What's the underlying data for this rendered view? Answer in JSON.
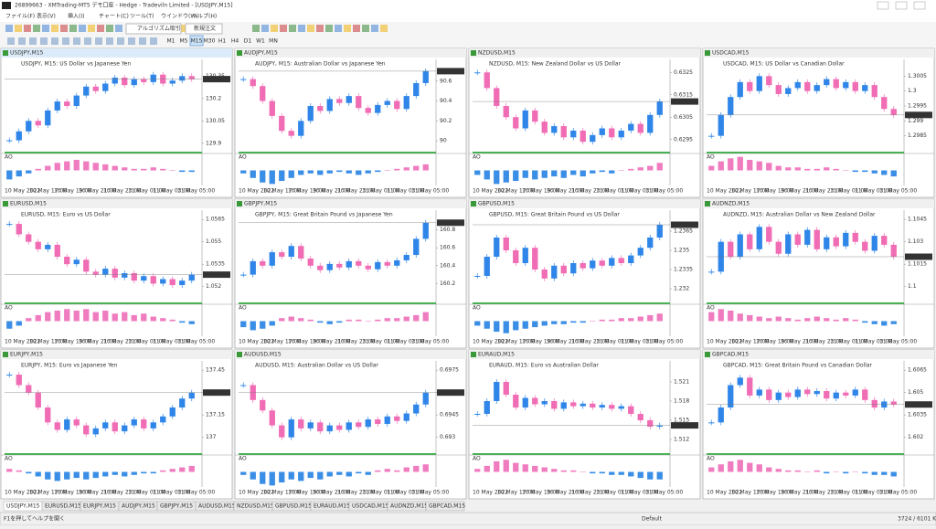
{
  "window": {
    "title": "26899663 - XMTrading-MT5 デモ口座 - Hedge - Tradeviln Limited - [USDJPY,M15]",
    "menu": [
      "ファイル(F)",
      "表示(V)",
      "挿入(I)",
      "チャート(C)",
      "ツール(T)",
      "ウインドウ(W)",
      "ヘルプ(H)"
    ],
    "toolbar": [
      "アルゴリズム取引",
      "新規注文"
    ],
    "timeframes": [
      "M1",
      "M5",
      "M15",
      "M30",
      "H1",
      "H4",
      "D1",
      "W1",
      "MN"
    ],
    "tabs": [
      "USDJPY,M15",
      "EURUSD,M15",
      "EURJPY,M15",
      "AUDJPY,M15",
      "GBPJPY,M15",
      "AUDUSD,M15",
      "NZDUSD,M15",
      "GBPUSD,M15",
      "EURAUD,M15",
      "USDCAD,M15",
      "AUDNZD,M15",
      "GBPCAD,M15"
    ],
    "status": {
      "help": "F1を押してヘルプを開く",
      "profile": "Default",
      "memory": "3724 / 6101 Kb"
    }
  },
  "style": {
    "up_color": "#2f86e8",
    "down_color": "#f06cb4",
    "osc_up": "#f07cc0",
    "osc_down": "#3a8ee6",
    "indicator": "AO"
  },
  "time_labels": [
    "10 May 2022",
    "10 May 17:00",
    "10 May 19:00",
    "10 May 21:00",
    "10 May 23:00",
    "11 May 01:00",
    "11 May 03:00",
    "11 May 05:00"
  ],
  "charts": [
    {
      "title": "USDJPY,M15",
      "desc": "USDJPY, M15: US Dollar vs Japanese Yen",
      "ylim": [
        129.85,
        130.45
      ],
      "yticks": [
        129.9,
        130.05,
        130.2,
        130.35
      ],
      "closes": [
        129.92,
        129.98,
        130.05,
        130.02,
        130.12,
        130.18,
        130.15,
        130.22,
        130.28,
        130.25,
        130.3,
        130.34,
        130.29,
        130.33,
        130.31,
        130.36,
        130.3,
        130.32,
        130.35,
        130.33
      ],
      "osc": [
        -0.6,
        -0.4,
        -0.2,
        0.1,
        0.3,
        0.5,
        0.6,
        0.7,
        0.6,
        0.5,
        0.4,
        0.3,
        0.2,
        0.1,
        0.1,
        0.2,
        0.1,
        0,
        -0.1,
        -0.1
      ]
    },
    {
      "title": "AUDJPY,M15",
      "desc": "AUDJPY, M15: Australian Dollar vs Japanese Yen",
      "ylim": [
        89.9,
        90.8
      ],
      "yticks": [
        90,
        90.2,
        90.4,
        90.6
      ],
      "closes": [
        90.62,
        90.55,
        90.4,
        90.25,
        90.1,
        90.05,
        90.2,
        90.35,
        90.3,
        90.42,
        90.38,
        90.45,
        90.33,
        90.28,
        90.36,
        90.4,
        90.32,
        90.45,
        90.58,
        90.7
      ],
      "osc": [
        -0.2,
        -0.5,
        -0.8,
        -0.9,
        -0.7,
        -0.5,
        -0.3,
        -0.2,
        -0.3,
        -0.2,
        -0.1,
        -0.2,
        -0.3,
        -0.2,
        -0.1,
        0,
        0.1,
        0.2,
        0.3,
        0.4
      ]
    },
    {
      "title": "NZDUSD,M15",
      "desc": "NZDUSD, M15: New Zealand Dollar vs US Dollar",
      "ylim": [
        0.629,
        0.633
      ],
      "yticks": [
        0.6295,
        0.6305,
        0.6315,
        0.6325
      ],
      "closes": [
        0.6325,
        0.6318,
        0.631,
        0.6305,
        0.63,
        0.6308,
        0.6303,
        0.6298,
        0.6301,
        0.6296,
        0.6299,
        0.6294,
        0.6297,
        0.63,
        0.6296,
        0.6299,
        0.6302,
        0.6298,
        0.6306,
        0.6312
      ],
      "osc": [
        -0.3,
        -0.6,
        -0.9,
        -0.8,
        -0.7,
        -0.5,
        -0.6,
        -0.5,
        -0.4,
        -0.5,
        -0.3,
        -0.4,
        -0.2,
        -0.1,
        -0.2,
        0,
        0.1,
        0.2,
        0.3,
        0.5
      ]
    },
    {
      "title": "USDCAD,M15",
      "desc": "USDCAD, M15: US Dollar vs Canadian Dollar",
      "ylim": [
        1.298,
        1.301
      ],
      "yticks": [
        1.2985,
        1.299,
        1.2995,
        1.3,
        1.3005
      ],
      "closes": [
        1.2985,
        1.2992,
        1.2998,
        1.3003,
        1.3,
        1.3005,
        1.3002,
        1.2999,
        1.3001,
        1.3003,
        1.3,
        1.3002,
        1.3004,
        1.3001,
        1.3003,
        1.3,
        1.3002,
        1.2998,
        1.2994,
        1.2992
      ],
      "osc": [
        0.3,
        0.6,
        0.8,
        0.9,
        0.7,
        0.6,
        0.5,
        0.3,
        0.2,
        0.2,
        0.1,
        0.1,
        0.2,
        0.1,
        0,
        -0.1,
        -0.1,
        -0.2,
        -0.3,
        -0.4
      ]
    },
    {
      "title": "EURUSD,M15",
      "desc": "EURUSD, M15: Euro vs US Dollar",
      "ylim": [
        1.051,
        1.057
      ],
      "yticks": [
        1.052,
        1.0535,
        1.055,
        1.0565
      ],
      "closes": [
        1.0562,
        1.0555,
        1.055,
        1.0545,
        1.0548,
        1.054,
        1.0535,
        1.0538,
        1.053,
        1.0528,
        1.0532,
        1.0526,
        1.0529,
        1.0524,
        1.0527,
        1.0522,
        1.0525,
        1.0521,
        1.0524,
        1.0528
      ],
      "osc": [
        -0.5,
        -0.3,
        0.2,
        0.4,
        0.6,
        0.7,
        0.8,
        0.7,
        0.8,
        0.6,
        0.7,
        0.5,
        0.6,
        0.4,
        0.5,
        0.3,
        0.2,
        0.1,
        -0.1,
        -0.2
      ]
    },
    {
      "title": "GBPJPY,M15",
      "desc": "GBPJPY, M15: Great Britain Pound vs Japanese Yen",
      "ylim": [
        160,
        161
      ],
      "yticks": [
        160.2,
        160.4,
        160.6,
        160.8
      ],
      "closes": [
        160.3,
        160.45,
        160.4,
        160.55,
        160.5,
        160.62,
        160.48,
        160.4,
        160.35,
        160.42,
        160.38,
        160.45,
        160.4,
        160.36,
        160.44,
        160.4,
        160.46,
        160.52,
        160.7,
        160.88
      ],
      "osc": [
        -0.4,
        -0.6,
        -0.5,
        -0.3,
        0.2,
        0.3,
        0.2,
        0.1,
        -0.1,
        -0.2,
        -0.1,
        0.1,
        0.1,
        0,
        0.1,
        0.2,
        0.2,
        0.3,
        0.4,
        0.6
      ]
    },
    {
      "title": "GBPUSD,M15",
      "desc": "GBPUSD, M15: Great Britain Pound vs US Dollar",
      "ylim": [
        1.231,
        1.238
      ],
      "yticks": [
        1.232,
        1.2335,
        1.235,
        1.2365
      ],
      "closes": [
        1.233,
        1.2345,
        1.236,
        1.235,
        1.234,
        1.2352,
        1.2335,
        1.2328,
        1.2338,
        1.2332,
        1.234,
        1.2336,
        1.2342,
        1.2338,
        1.2344,
        1.234,
        1.2346,
        1.2352,
        1.236,
        1.237
      ],
      "osc": [
        -0.3,
        -0.5,
        -0.7,
        -0.8,
        -0.6,
        -0.5,
        -0.4,
        -0.3,
        -0.2,
        -0.2,
        -0.1,
        -0.1,
        0,
        0.1,
        0.1,
        0.2,
        0.2,
        0.3,
        0.4,
        0.5
      ]
    },
    {
      "title": "AUDNZD,M15",
      "desc": "AUDNZD, M15: Australian Dollar vs New Zealand Dollar",
      "ylim": [
        1.099,
        1.105
      ],
      "yticks": [
        1.1,
        1.1015,
        1.103,
        1.1045
      ],
      "closes": [
        1.101,
        1.103,
        1.102,
        1.1035,
        1.1025,
        1.104,
        1.103,
        1.1022,
        1.1035,
        1.1028,
        1.1038,
        1.1025,
        1.1033,
        1.1027,
        1.1036,
        1.103,
        1.1024,
        1.1034,
        1.1028,
        1.102
      ],
      "osc": [
        0.6,
        0.8,
        0.7,
        0.5,
        0.4,
        0.3,
        0.2,
        0.3,
        0.2,
        0.1,
        0.2,
        0.3,
        0.2,
        0.1,
        0.2,
        0.1,
        -0.1,
        -0.2,
        -0.3,
        -0.2
      ]
    },
    {
      "title": "EURJPY,M15",
      "desc": "EURJPY, M15: Euro vs Japanese Yen",
      "ylim": [
        136.9,
        137.5
      ],
      "yticks": [
        137,
        137.15,
        137.3,
        137.45
      ],
      "closes": [
        137.42,
        137.35,
        137.3,
        137.2,
        137.1,
        137.05,
        137.12,
        137.08,
        137.02,
        137.06,
        137.1,
        137.04,
        137.08,
        137.12,
        137.06,
        137.1,
        137.14,
        137.2,
        137.26,
        137.3
      ],
      "osc": [
        0.2,
        0.1,
        -0.1,
        -0.3,
        -0.5,
        -0.6,
        -0.5,
        -0.4,
        -0.5,
        -0.4,
        -0.3,
        -0.2,
        -0.3,
        -0.2,
        -0.1,
        -0.1,
        0.1,
        0.2,
        0.3,
        0.4
      ]
    },
    {
      "title": "AUDUSD,M15",
      "desc": "AUDUSD, M15: Australian Dollar vs US Dollar",
      "ylim": [
        0.692,
        0.698
      ],
      "yticks": [
        0.693,
        0.6945,
        0.696,
        0.6975
      ],
      "closes": [
        0.6965,
        0.6955,
        0.6948,
        0.6938,
        0.693,
        0.6942,
        0.6936,
        0.694,
        0.6934,
        0.6938,
        0.6935,
        0.694,
        0.6937,
        0.6942,
        0.6939,
        0.6944,
        0.6941,
        0.6946,
        0.6952,
        0.696
      ],
      "osc": [
        -0.2,
        -0.5,
        -0.8,
        -0.9,
        -0.7,
        -0.5,
        -0.6,
        -0.4,
        -0.5,
        -0.3,
        -0.2,
        -0.3,
        -0.1,
        -0.2,
        0.1,
        0.2,
        0.1,
        0.3,
        0.4,
        0.5
      ]
    },
    {
      "title": "EURAUD,M15",
      "desc": "EURAUD, M15: Euro vs Australian Dollar",
      "ylim": [
        1.51,
        1.524
      ],
      "yticks": [
        1.512,
        1.515,
        1.518,
        1.521
      ],
      "closes": [
        1.516,
        1.518,
        1.521,
        1.519,
        1.517,
        1.5185,
        1.5175,
        1.518,
        1.5168,
        1.5178,
        1.5172,
        1.5176,
        1.517,
        1.5174,
        1.5168,
        1.5172,
        1.516,
        1.515,
        1.514,
        1.5142
      ],
      "osc": [
        0.2,
        0.4,
        0.7,
        0.8,
        0.6,
        0.5,
        0.4,
        0.3,
        0.2,
        0.1,
        0.1,
        0,
        -0.1,
        -0.1,
        -0.2,
        -0.2,
        -0.3,
        -0.4,
        -0.5,
        -0.5
      ]
    },
    {
      "title": "GBPCAD,M15",
      "desc": "GBPCAD, M15: Great Britain Pound vs Canadian Dollar",
      "ylim": [
        1.601,
        1.607
      ],
      "yticks": [
        1.602,
        1.6035,
        1.605,
        1.6065
      ],
      "closes": [
        1.603,
        1.604,
        1.6055,
        1.606,
        1.6048,
        1.6052,
        1.6045,
        1.605,
        1.6047,
        1.6052,
        1.6049,
        1.6051,
        1.6046,
        1.605,
        1.6048,
        1.6052,
        1.6045,
        1.604,
        1.6044,
        1.6042
      ],
      "osc": [
        0.3,
        0.5,
        0.7,
        0.8,
        0.6,
        0.5,
        0.3,
        0.2,
        0.1,
        0.1,
        0,
        0.1,
        -0.1,
        0,
        -0.1,
        0,
        -0.1,
        -0.2,
        -0.2,
        -0.3
      ]
    }
  ]
}
